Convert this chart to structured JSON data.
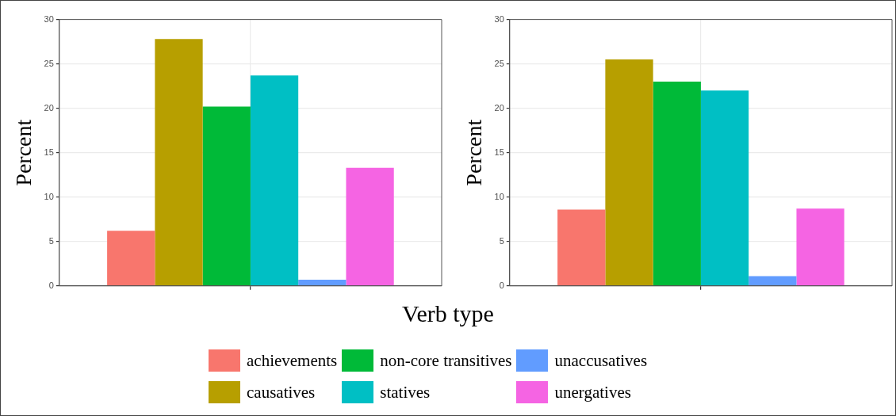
{
  "chart_data": [
    {
      "type": "bar",
      "categories": [
        null
      ],
      "ylabel": "Percent",
      "xlabel": "Verb type",
      "ylim": [
        0,
        30
      ],
      "yticks": [
        0,
        5,
        10,
        15,
        20,
        25,
        30
      ],
      "grid": true,
      "legend": "bottom",
      "series": [
        {
          "name": "achievements",
          "color": "#f8766d",
          "values": [
            6.2
          ]
        },
        {
          "name": "causatives",
          "color": "#b79f00",
          "values": [
            27.8
          ]
        },
        {
          "name": "non-core transitives",
          "color": "#00ba38",
          "values": [
            20.2
          ]
        },
        {
          "name": "statives",
          "color": "#00bfc4",
          "values": [
            23.7
          ]
        },
        {
          "name": "unaccusatives",
          "color": "#619cff",
          "values": [
            0.7
          ]
        },
        {
          "name": "unergatives",
          "color": "#f564e3",
          "values": [
            13.3
          ]
        }
      ]
    },
    {
      "type": "bar",
      "categories": [
        null
      ],
      "ylabel": "Percent",
      "ylim": [
        0,
        30
      ],
      "yticks": [
        0,
        5,
        10,
        15,
        20,
        25,
        30
      ],
      "grid": true,
      "series": [
        {
          "color": "#f8766d",
          "values": [
            8.6
          ]
        },
        {
          "color": "#b79f00",
          "values": [
            25.5
          ]
        },
        {
          "color": "#00ba38",
          "values": [
            23.0
          ]
        },
        {
          "color": "#00bfc4",
          "values": [
            22.0
          ]
        },
        {
          "color": "#619cff",
          "values": [
            1.1
          ]
        },
        {
          "color": "#f564e3",
          "values": [
            8.7
          ]
        }
      ]
    }
  ]
}
